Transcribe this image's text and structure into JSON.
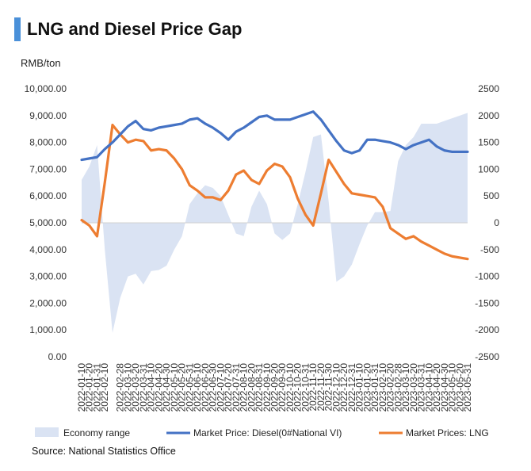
{
  "title": "LNG and Diesel Price Gap",
  "unit_label": "RMB/ton",
  "source": "Source: National Statistics Office",
  "colors": {
    "accent": "#4a90d9",
    "diesel": "#4472c4",
    "lng": "#ed7d31",
    "range": "#dae3f3"
  },
  "chart_data": {
    "type": "line",
    "x": [
      "2022-01-10",
      "2022-01-20",
      "2022-01-31",
      "2022-02-10",
      "2022-02-20",
      "2022-02-28",
      "2022-03-10",
      "2022-03-20",
      "2022-03-31",
      "2022-04-10",
      "2022-04-20",
      "2022-04-30",
      "2022-05-10",
      "2022-05-20",
      "2022-05-31",
      "2022-06-10",
      "2022-06-20",
      "2022-06-30",
      "2022-07-10",
      "2022-07-20",
      "2022-07-31",
      "2022-08-10",
      "2022-08-20",
      "2022-08-31",
      "2022-09-10",
      "2022-09-20",
      "2022-09-30",
      "2022-10-10",
      "2022-10-20",
      "2022-10-31",
      "2022-11-10",
      "2022-11-20",
      "2022-11-30",
      "2022-12-10",
      "2022-12-20",
      "2022-12-31",
      "2023-01-10",
      "2023-01-20",
      "2023-01-31",
      "2023-02-10",
      "2023-02-20",
      "2023-02-28",
      "2023-03-10",
      "2023-03-20",
      "2023-03-31",
      "2023-04-10",
      "2023-04-20",
      "2023-04-30",
      "2023-05-10",
      "2023-05-20",
      "2023-05-31"
    ],
    "x_tick_labels": [
      "2022-01-10",
      "2022-01-31",
      "2022-02-28",
      "2022-03-20",
      "2022-04-10",
      "2022-04-30",
      "2022-05-20",
      "2022-06-10",
      "2022-06-30",
      "2022-07-20",
      "2022-08-10",
      "2022-08-31",
      "2022-09-20",
      "2022-10-10",
      "2022-10-31",
      "2022-11-20",
      "2022-12-10",
      "2022-12-31",
      "2023-01-20",
      "2023-02-10",
      "2023-02-28",
      "2023-03-20",
      "2023-04-10",
      "2023-04-30",
      "2023-05-20"
    ],
    "x_tick_labels_2": [
      "2022-01-20",
      "2022-02-10",
      "2022-03-10",
      "2022-03-31",
      "2022-04-20",
      "2022-05-10",
      "2022-05-31",
      "2022-06-20",
      "2022-07-10",
      "2022-07-31",
      "2022-08-20",
      "2022-09-10",
      "2022-09-30",
      "2022-10-20",
      "2022-11-10",
      "2022-11-30",
      "2022-12-20",
      "2023-01-10",
      "2023-01-31",
      "2023-02-20",
      "2023-03-10",
      "2023-03-31",
      "2023-04-20",
      "2023-05-10",
      "2023-05-31"
    ],
    "series": [
      {
        "name": "Economy range",
        "axis": "right",
        "kind": "area",
        "values": [
          800,
          1050,
          1450,
          -500,
          -2050,
          -1400,
          -1000,
          -950,
          -1150,
          -900,
          -880,
          -800,
          -500,
          -250,
          350,
          550,
          700,
          650,
          500,
          150,
          -200,
          -250,
          300,
          600,
          350,
          -200,
          -320,
          -200,
          350,
          950,
          1600,
          1650,
          400,
          -1100,
          -1000,
          -780,
          -400,
          -50,
          200,
          200,
          220,
          1150,
          1450,
          1600,
          1850,
          1850,
          1850,
          1900,
          1950,
          2000,
          2050
        ]
      },
      {
        "name": "Market Price: Diesel(0#National VI)",
        "axis": "left",
        "kind": "line",
        "values": [
          7350,
          7400,
          7450,
          7750,
          8000,
          8300,
          8600,
          8800,
          8500,
          8450,
          8550,
          8600,
          8650,
          8700,
          8850,
          8900,
          8700,
          8550,
          8350,
          8100,
          8400,
          8550,
          8750,
          8950,
          9000,
          8850,
          8850,
          8850,
          8950,
          9050,
          9150,
          8850,
          8450,
          8050,
          7700,
          7600,
          7700,
          8100,
          8100,
          8050,
          8000,
          7900,
          7750,
          7900,
          8000,
          8100,
          7850,
          7700,
          7650,
          7650,
          7650
        ]
      },
      {
        "name": "Market Prices: LNG",
        "axis": "left",
        "kind": "line",
        "values": [
          5100,
          4900,
          4500,
          6500,
          8650,
          8300,
          8000,
          8100,
          8050,
          7700,
          7750,
          7700,
          7400,
          7000,
          6400,
          6200,
          5950,
          5950,
          5850,
          6200,
          6800,
          6950,
          6600,
          6450,
          6950,
          7200,
          7100,
          6700,
          5900,
          5300,
          4900,
          6100,
          7350,
          6900,
          6450,
          6100,
          6050,
          6000,
          5950,
          5600,
          4800,
          4600,
          4400,
          4500,
          4300,
          4150,
          4000,
          3850,
          3750,
          3700,
          3650
        ]
      }
    ],
    "y_left": {
      "min": 0,
      "max": 10000,
      "ticks": [
        "0.00",
        "1,000.00",
        "2,000.00",
        "3,000.00",
        "4,000.00",
        "5,000.00",
        "6,000.00",
        "7,000.00",
        "8,000.00",
        "9,000.00",
        "10,000.00"
      ]
    },
    "y_right": {
      "min": -2500,
      "max": 2500,
      "ticks": [
        "-2500",
        "-2000",
        "-1500",
        "-1000",
        "-500",
        "0",
        "500",
        "1000",
        "1500",
        "2000",
        "2500"
      ]
    },
    "legend": {
      "placement": "bottom"
    },
    "grid": false
  }
}
